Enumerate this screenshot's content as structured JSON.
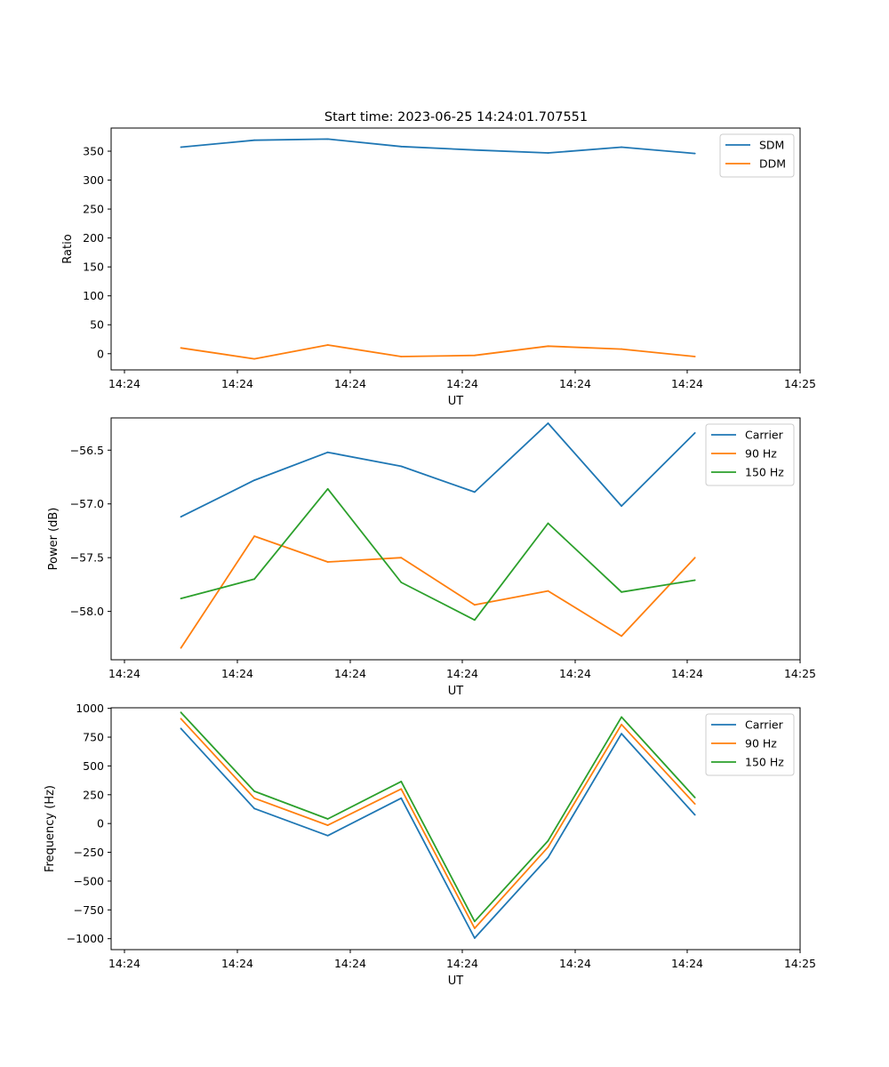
{
  "title": "Start time: 2023-06-25 14:24:01.707551",
  "chart_data": [
    {
      "type": "line",
      "xlabel": "UT",
      "ylabel": "Ratio",
      "xticks": [
        "14:24",
        "14:24",
        "14:24",
        "14:24",
        "14:24",
        "14:24",
        "14:25"
      ],
      "yticks": [
        0,
        50,
        100,
        150,
        200,
        250,
        300,
        350
      ],
      "ylim": [
        -28,
        390
      ],
      "legend": "upper right",
      "series": [
        {
          "name": "SDM",
          "color": "#1f77b4",
          "values": [
            357,
            369,
            371,
            358,
            352,
            347,
            357,
            346
          ]
        },
        {
          "name": "DDM",
          "color": "#ff7f0e",
          "values": [
            10,
            -9,
            15,
            -5,
            -3,
            13,
            8,
            -5
          ]
        }
      ]
    },
    {
      "type": "line",
      "xlabel": "UT",
      "ylabel": "Power (dB)",
      "xticks": [
        "14:24",
        "14:24",
        "14:24",
        "14:24",
        "14:24",
        "14:24",
        "14:25"
      ],
      "yticks": [
        -58.0,
        -57.5,
        -57.0,
        -56.5
      ],
      "ylim": [
        -58.45,
        -56.2
      ],
      "legend": "upper right",
      "series": [
        {
          "name": "Carrier",
          "color": "#1f77b4",
          "values": [
            -57.12,
            -56.78,
            -56.52,
            -56.65,
            -56.89,
            -56.25,
            -57.02,
            -56.34
          ]
        },
        {
          "name": "90 Hz",
          "color": "#ff7f0e",
          "values": [
            -58.34,
            -57.3,
            -57.54,
            -57.5,
            -57.94,
            -57.81,
            -58.23,
            -57.5
          ]
        },
        {
          "name": "150 Hz",
          "color": "#2ca02c",
          "values": [
            -57.88,
            -57.7,
            -56.86,
            -57.73,
            -58.08,
            -57.18,
            -57.82,
            -57.71
          ]
        }
      ]
    },
    {
      "type": "line",
      "xlabel": "UT",
      "ylabel": "Frequency (Hz)",
      "xticks": [
        "14:24",
        "14:24",
        "14:24",
        "14:24",
        "14:24",
        "14:24",
        "14:25"
      ],
      "yticks": [
        -1000,
        -750,
        -500,
        -250,
        0,
        250,
        500,
        750,
        1000
      ],
      "ylim": [
        -1095,
        1005
      ],
      "legend": "upper right",
      "series": [
        {
          "name": "Carrier",
          "color": "#1f77b4",
          "values": [
            825,
            130,
            -105,
            220,
            -995,
            -295,
            780,
            75
          ]
        },
        {
          "name": "90 Hz",
          "color": "#ff7f0e",
          "values": [
            910,
            220,
            -15,
            300,
            -910,
            -205,
            860,
            170
          ]
        },
        {
          "name": "150 Hz",
          "color": "#2ca02c",
          "values": [
            965,
            280,
            40,
            365,
            -850,
            -150,
            925,
            225
          ]
        }
      ]
    }
  ]
}
